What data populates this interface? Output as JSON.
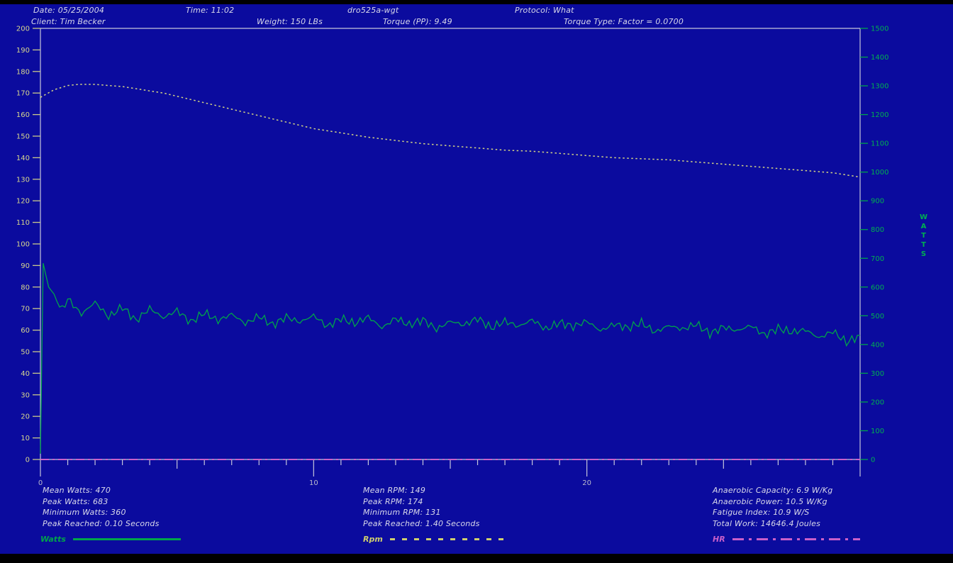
{
  "window": {
    "background": "#0b0b9e"
  },
  "header": {
    "date": "Date: 05/25/2004",
    "time": "Time: 11:02",
    "filename": "dro525a-wgt",
    "protocol": "Protocol: What",
    "client": "Client: Tim Becker",
    "weight": "Weight: 150 LBs",
    "torque": "Torque (PP): 9.49",
    "torque_type": "Torque Type: Factor = 0.0700"
  },
  "chart_data": {
    "type": "line",
    "title": "",
    "background": "#0b0b9e",
    "grid": false,
    "x_axis": {
      "min": 0,
      "max": 30,
      "unit": "seconds",
      "major_tick_labels": [
        0,
        10,
        20
      ],
      "minor_tick_step": 1,
      "medium_tick_step": 5,
      "label_color": "#b9b9cc",
      "line_color": "#c6c6da"
    },
    "left_axis": {
      "min": 0,
      "max": 200,
      "tick_step": 10,
      "label_color": "#d6d68e",
      "tick_color": "#c9c98a",
      "measures": "RPM"
    },
    "right_axis": {
      "min": 0,
      "max": 1500,
      "tick_step": 100,
      "label": "WATTS",
      "label_color": "#00b050",
      "tick_color": "#00a44a"
    },
    "series": [
      {
        "name": "Watts",
        "axis": "right",
        "color": "#00a44a",
        "style": "solid",
        "noise_amp": 16,
        "points": [
          [
            0,
            20
          ],
          [
            0.1,
            683
          ],
          [
            0.3,
            600
          ],
          [
            0.5,
            575
          ],
          [
            0.8,
            520
          ],
          [
            1,
            560
          ],
          [
            1.5,
            505
          ],
          [
            2,
            548
          ],
          [
            2.5,
            495
          ],
          [
            3,
            532
          ],
          [
            3.5,
            482
          ],
          [
            4,
            527
          ],
          [
            4.5,
            492
          ],
          [
            5,
            520
          ],
          [
            5.5,
            477
          ],
          [
            6,
            512
          ],
          [
            6.5,
            482
          ],
          [
            7,
            507
          ],
          [
            7.5,
            472
          ],
          [
            8,
            500
          ],
          [
            8.5,
            467
          ],
          [
            9,
            497
          ],
          [
            9.5,
            477
          ],
          [
            10,
            502
          ],
          [
            10.5,
            462
          ],
          [
            11,
            492
          ],
          [
            11.5,
            472
          ],
          [
            12,
            497
          ],
          [
            12.5,
            457
          ],
          [
            13,
            492
          ],
          [
            13.5,
            467
          ],
          [
            14,
            487
          ],
          [
            14.5,
            452
          ],
          [
            15,
            482
          ],
          [
            15.5,
            467
          ],
          [
            16,
            492
          ],
          [
            16.5,
            457
          ],
          [
            17,
            482
          ],
          [
            17.5,
            462
          ],
          [
            18,
            487
          ],
          [
            18.5,
            452
          ],
          [
            19,
            477
          ],
          [
            19.5,
            462
          ],
          [
            20,
            482
          ],
          [
            20.5,
            447
          ],
          [
            21,
            472
          ],
          [
            21.5,
            457
          ],
          [
            22,
            477
          ],
          [
            22.5,
            442
          ],
          [
            23,
            467
          ],
          [
            23.5,
            452
          ],
          [
            24,
            472
          ],
          [
            24.5,
            437
          ],
          [
            25,
            462
          ],
          [
            25.5,
            447
          ],
          [
            26,
            467
          ],
          [
            26.5,
            432
          ],
          [
            27,
            457
          ],
          [
            27.5,
            442
          ],
          [
            28,
            452
          ],
          [
            28.5,
            422
          ],
          [
            29,
            447
          ],
          [
            29.5,
            407
          ],
          [
            30,
            432
          ]
        ]
      },
      {
        "name": "Rpm",
        "axis": "left",
        "color": "#d2d284",
        "style": "dashed",
        "points": [
          [
            0,
            168
          ],
          [
            0.5,
            171.5
          ],
          [
            1,
            173.5
          ],
          [
            1.4,
            174
          ],
          [
            2,
            174
          ],
          [
            2.5,
            173.5
          ],
          [
            3,
            173
          ],
          [
            3.5,
            172
          ],
          [
            4,
            171
          ],
          [
            4.5,
            170
          ],
          [
            5,
            168.5
          ],
          [
            5.5,
            167
          ],
          [
            6,
            165.5
          ],
          [
            6.5,
            164
          ],
          [
            7,
            162.5
          ],
          [
            7.5,
            161
          ],
          [
            8,
            159.5
          ],
          [
            8.5,
            158
          ],
          [
            9,
            156.5
          ],
          [
            9.5,
            155
          ],
          [
            10,
            153.5
          ],
          [
            11,
            151.5
          ],
          [
            12,
            149.5
          ],
          [
            13,
            148
          ],
          [
            14,
            146.5
          ],
          [
            15,
            145.5
          ],
          [
            16,
            144.5
          ],
          [
            17,
            143.5
          ],
          [
            18,
            143
          ],
          [
            19,
            142
          ],
          [
            20,
            141
          ],
          [
            21,
            140
          ],
          [
            22,
            139.5
          ],
          [
            23,
            139
          ],
          [
            24,
            138
          ],
          [
            25,
            137
          ],
          [
            26,
            136
          ],
          [
            27,
            135
          ],
          [
            28,
            134
          ],
          [
            29,
            133
          ],
          [
            29.5,
            132
          ],
          [
            30,
            131
          ]
        ]
      },
      {
        "name": "HR",
        "axis": "left",
        "color": "#c95fc9",
        "style": "dashdot",
        "points": [
          [
            0,
            0
          ],
          [
            30,
            0
          ]
        ]
      }
    ]
  },
  "stats": {
    "watts": {
      "legend": "Watts",
      "lines": [
        "Mean Watts: 470",
        "Peak Watts: 683",
        "Minimum Watts: 360",
        "Peak Reached: 0.10 Seconds"
      ]
    },
    "rpm": {
      "legend": "Rpm",
      "lines": [
        "Mean RPM: 149",
        "Peak RPM: 174",
        "Minimum RPM: 131",
        "Peak Reached: 1.40 Seconds"
      ]
    },
    "hr": {
      "legend": "HR",
      "lines": [
        "Anaerobic Capacity: 6.9 W/Kg",
        "Anaerobic Power: 10.5 W/Kg",
        "Fatigue Index: 10.9 W/S",
        "Total Work: 14646.4 Joules"
      ]
    }
  }
}
